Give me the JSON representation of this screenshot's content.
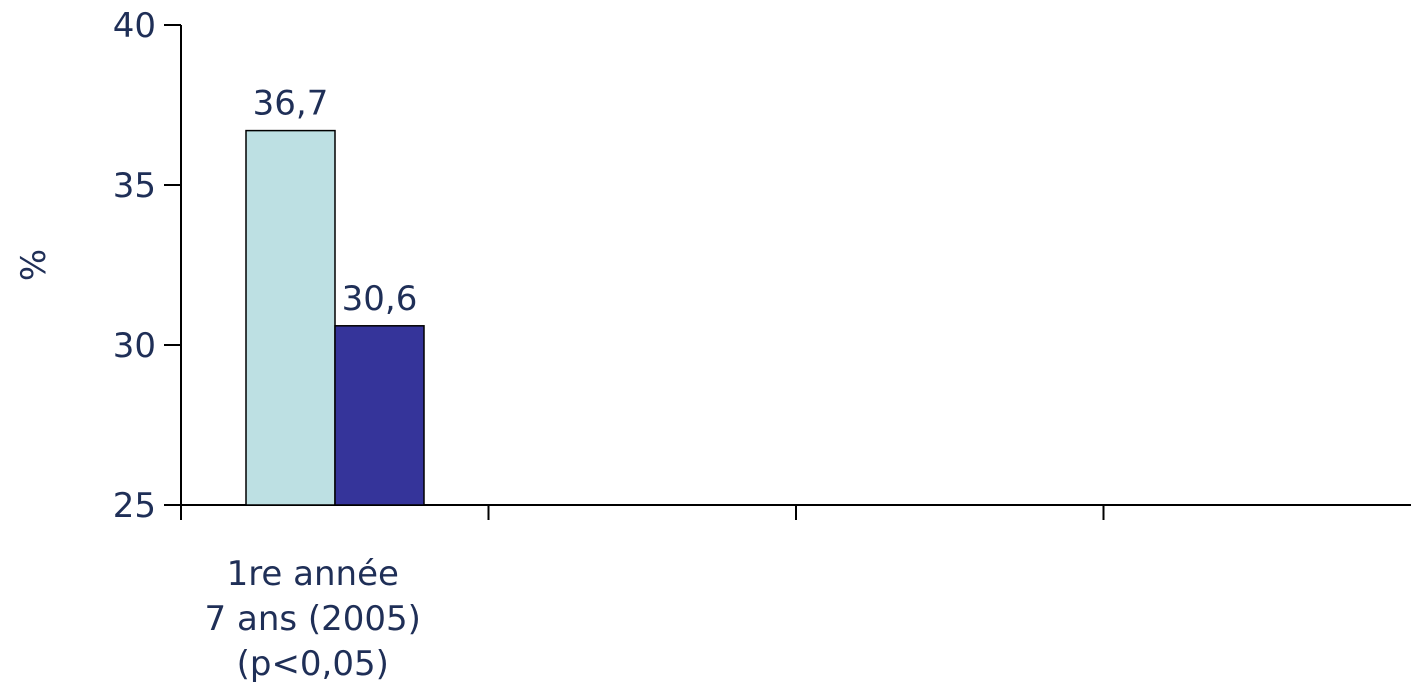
{
  "chart_data": {
    "type": "bar",
    "title": "",
    "ylabel": "%",
    "xlabel": "",
    "ylim": [
      25,
      40
    ],
    "yticks": [
      25,
      30,
      35,
      40
    ],
    "grid": false,
    "categories": [
      {
        "lines": [
          "1re année",
          "7 ans (2005)",
          "(p<0,05)"
        ]
      },
      {
        "lines": []
      },
      {
        "lines": []
      },
      {
        "lines": []
      }
    ],
    "series": [
      {
        "values": [
          36.7,
          null,
          null,
          null
        ],
        "labels": [
          "36,7",
          "",
          "",
          ""
        ],
        "color": "#bde0e3"
      },
      {
        "values": [
          30.6,
          null,
          null,
          null
        ],
        "labels": [
          "30,6",
          "",
          "",
          ""
        ],
        "color": "#35349a"
      }
    ],
    "axis_color": "#000000",
    "text_color": "#1f2f57"
  }
}
